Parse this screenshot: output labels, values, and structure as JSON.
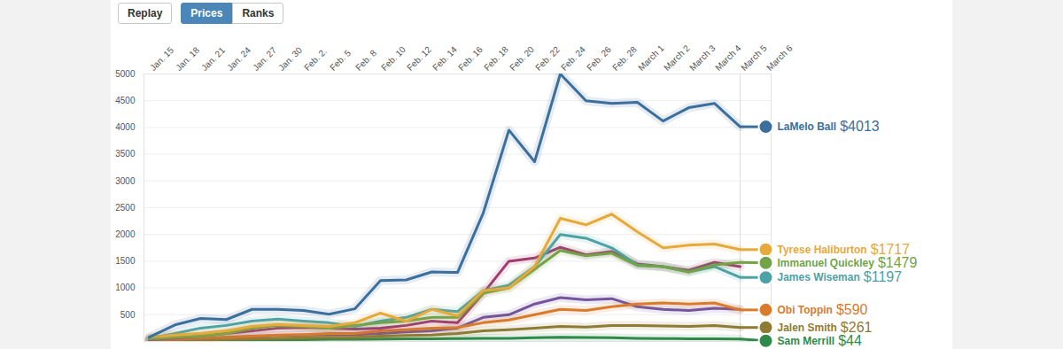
{
  "controls": [
    {
      "label": "Replay"
    },
    {
      "label": "Prices",
      "active": true
    },
    {
      "label": "Ranks"
    }
  ],
  "chart_data": {
    "type": "line",
    "x": [
      "Jan. 15",
      "Jan. 18",
      "Jan. 21",
      "Jan. 24",
      "Jan. 27",
      "Jan. 30",
      "Feb. 2.",
      "Feb. 5",
      "Feb. 8",
      "Feb. 10",
      "Feb. 12",
      "Feb. 14",
      "Feb. 16",
      "Feb. 18",
      "Feb. 20",
      "Feb. 22",
      "Feb. 24",
      "Feb. 26",
      "Feb. 28",
      "March 1",
      "March 2",
      "March 3",
      "March 4",
      "March 5",
      "March 6"
    ],
    "ylim": [
      0,
      5000
    ],
    "yticks": [
      500,
      1000,
      1500,
      2000,
      2500,
      3000,
      3500,
      4000,
      4500,
      5000
    ],
    "grid": true,
    "data_labels": true,
    "series": [
      {
        "name": null,
        "color": "#74549c",
        "values": [
          20,
          30,
          50,
          70,
          90,
          110,
          120,
          130,
          130,
          150,
          180,
          200,
          250,
          450,
          500,
          700,
          820,
          780,
          800,
          650,
          600,
          580,
          620,
          600,
          null
        ]
      },
      {
        "name": "Sam Merrill",
        "color": "#2f8a4a",
        "values": [
          null,
          null,
          20,
          25,
          30,
          30,
          35,
          40,
          40,
          45,
          50,
          50,
          55,
          60,
          60,
          70,
          80,
          75,
          70,
          60,
          55,
          50,
          48,
          44,
          null
        ],
        "value_labels": [
          null,
          null,
          null,
          null,
          null,
          null,
          null,
          null,
          null,
          null,
          null,
          null,
          null,
          null,
          null,
          null,
          null,
          null,
          null,
          null,
          null,
          null,
          null,
          "$44",
          null
        ]
      },
      {
        "name": "Jalen Smith",
        "color": "#8e7b34",
        "values": [
          10,
          20,
          30,
          40,
          50,
          60,
          70,
          80,
          80,
          100,
          110,
          120,
          150,
          200,
          220,
          250,
          280,
          270,
          300,
          300,
          290,
          280,
          300,
          261,
          null
        ],
        "value_labels": [
          null,
          null,
          null,
          null,
          null,
          null,
          null,
          null,
          null,
          null,
          null,
          null,
          null,
          null,
          null,
          null,
          null,
          null,
          null,
          null,
          null,
          null,
          null,
          "$261",
          null
        ]
      },
      {
        "name": "Obi Toppin",
        "color": "#d97b2b",
        "values": [
          20,
          40,
          60,
          80,
          100,
          120,
          130,
          150,
          150,
          200,
          220,
          250,
          260,
          350,
          400,
          500,
          600,
          580,
          650,
          700,
          720,
          700,
          720,
          590,
          null
        ],
        "value_labels": [
          null,
          null,
          null,
          null,
          null,
          null,
          null,
          null,
          null,
          null,
          null,
          null,
          null,
          null,
          null,
          null,
          null,
          null,
          null,
          null,
          null,
          null,
          null,
          "$590",
          null
        ]
      },
      {
        "name": null,
        "color": "#a03c6e",
        "values": [
          30,
          60,
          100,
          150,
          200,
          250,
          260,
          250,
          230,
          250,
          300,
          380,
          350,
          900,
          1500,
          1560,
          1760,
          1620,
          1680,
          1450,
          1400,
          1330,
          1480,
          1400,
          null
        ]
      },
      {
        "name": "James Wiseman",
        "color": "#4ba3a6",
        "values": [
          50,
          150,
          250,
          300,
          380,
          420,
          380,
          350,
          280,
          380,
          450,
          600,
          560,
          950,
          1050,
          1400,
          2000,
          1930,
          1750,
          1430,
          1400,
          1300,
          1400,
          1197,
          null
        ],
        "value_labels": [
          null,
          null,
          null,
          null,
          null,
          null,
          null,
          null,
          null,
          null,
          null,
          null,
          null,
          null,
          null,
          null,
          null,
          null,
          null,
          null,
          null,
          null,
          null,
          "$1197",
          null
        ]
      },
      {
        "name": "Immanuel Quickley",
        "color": "#72a346",
        "values": [
          50,
          80,
          100,
          150,
          250,
          300,
          280,
          250,
          300,
          350,
          380,
          450,
          450,
          900,
          1000,
          1350,
          1700,
          1600,
          1650,
          1420,
          1400,
          1300,
          1430,
          1479,
          null
        ],
        "value_labels": [
          null,
          null,
          null,
          null,
          null,
          null,
          null,
          null,
          null,
          null,
          null,
          null,
          null,
          null,
          null,
          null,
          null,
          null,
          null,
          null,
          null,
          null,
          null,
          "$1479",
          null
        ]
      },
      {
        "name": "Tyrese Haliburton",
        "color": "#e6a93a",
        "values": [
          80,
          120,
          150,
          200,
          280,
          320,
          300,
          280,
          350,
          530,
          380,
          600,
          480,
          950,
          1000,
          1400,
          2300,
          2180,
          2380,
          2050,
          1750,
          1800,
          1820,
          1717,
          null
        ],
        "value_labels": [
          null,
          null,
          null,
          null,
          null,
          null,
          null,
          null,
          null,
          null,
          null,
          null,
          null,
          null,
          null,
          null,
          null,
          null,
          null,
          null,
          null,
          null,
          null,
          "$1717",
          null
        ]
      },
      {
        "name": "LaMelo Ball",
        "color": "#3a6f9e",
        "values": [
          80,
          310,
          430,
          410,
          600,
          600,
          580,
          510,
          610,
          1140,
          1150,
          1300,
          1290,
          2400,
          3950,
          3360,
          5000,
          4500,
          4450,
          4470,
          4120,
          4370,
          4450,
          4013,
          null
        ],
        "value_labels": [
          null,
          null,
          null,
          null,
          null,
          null,
          null,
          null,
          null,
          null,
          null,
          null,
          null,
          null,
          null,
          null,
          null,
          null,
          null,
          null,
          null,
          null,
          null,
          "$4013",
          null
        ]
      }
    ]
  }
}
